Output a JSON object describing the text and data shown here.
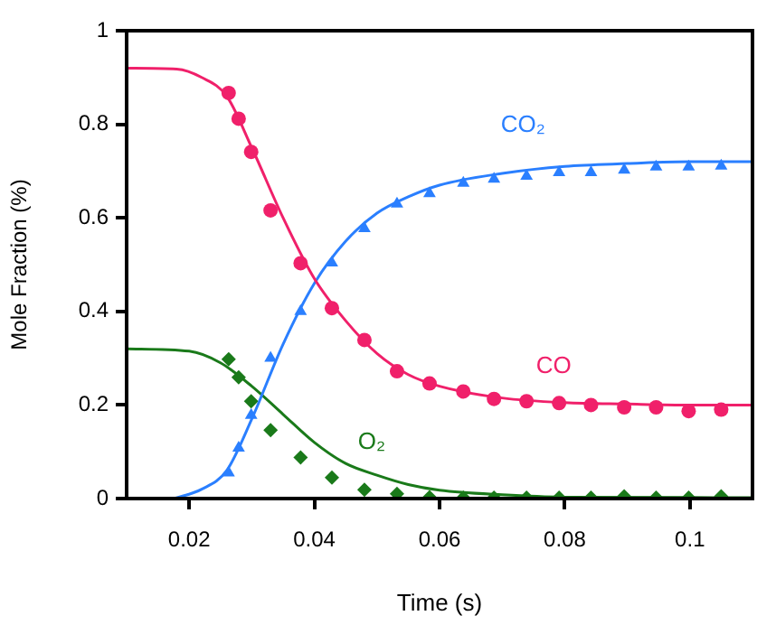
{
  "chart_data": {
    "type": "scatter",
    "xlabel": "Time (s)",
    "ylabel": "Mole Fraction (%)",
    "xlim": [
      0.01,
      0.11
    ],
    "xticks": [
      0.02,
      0.04,
      0.06,
      0.08,
      0.1
    ],
    "ylim": [
      0,
      1
    ],
    "yticks": [
      0,
      0.2,
      0.4,
      0.6,
      0.8,
      1
    ],
    "grid": false,
    "legend": false,
    "series": [
      {
        "name": "CO",
        "color": "#f0206a",
        "marker": "circle",
        "x": [
          0.0263,
          0.0279,
          0.0299,
          0.033,
          0.0378,
          0.0428,
          0.048,
          0.0532,
          0.0584,
          0.0638,
          0.0687,
          0.0739,
          0.0791,
          0.0842,
          0.0895,
          0.0946,
          0.0998,
          0.105
        ],
        "values": [
          0.867,
          0.812,
          0.741,
          0.616,
          0.503,
          0.407,
          0.339,
          0.272,
          0.246,
          0.229,
          0.213,
          0.208,
          0.204,
          0.2,
          0.195,
          0.195,
          0.187,
          0.19
        ]
      },
      {
        "type": "line",
        "color": "#f0206a",
        "marker": "none",
        "x": [
          0.01,
          0.018,
          0.022,
          0.026,
          0.03,
          0.035,
          0.04,
          0.045,
          0.05,
          0.055,
          0.06,
          0.07,
          0.08,
          0.09,
          0.1,
          0.11
        ],
        "values": [
          0.92,
          0.918,
          0.9,
          0.86,
          0.75,
          0.6,
          0.47,
          0.38,
          0.31,
          0.265,
          0.24,
          0.215,
          0.205,
          0.202,
          0.2,
          0.2
        ]
      },
      {
        "name": "CO₂",
        "color": "#2a7fff",
        "marker": "triangle",
        "x": [
          0.0263,
          0.0279,
          0.0299,
          0.033,
          0.0378,
          0.0428,
          0.048,
          0.0532,
          0.0584,
          0.0638,
          0.0687,
          0.0739,
          0.0791,
          0.0842,
          0.0895,
          0.0946,
          0.0998,
          0.105
        ],
        "values": [
          0.055,
          0.108,
          0.178,
          0.3,
          0.4,
          0.504,
          0.577,
          0.63,
          0.652,
          0.674,
          0.683,
          0.689,
          0.697,
          0.697,
          0.702,
          0.709,
          0.709,
          0.711
        ]
      },
      {
        "type": "line",
        "color": "#2a7fff",
        "marker": "none",
        "x": [
          0.0176,
          0.022,
          0.026,
          0.03,
          0.035,
          0.04,
          0.045,
          0.05,
          0.055,
          0.06,
          0.07,
          0.08,
          0.09,
          0.1,
          0.11
        ],
        "values": [
          0,
          0.02,
          0.06,
          0.17,
          0.33,
          0.46,
          0.55,
          0.61,
          0.645,
          0.67,
          0.695,
          0.71,
          0.716,
          0.72,
          0.72
        ]
      },
      {
        "name": "O₂",
        "color": "#1a7a1a",
        "marker": "diamond",
        "x": [
          0.0263,
          0.0279,
          0.0299,
          0.033,
          0.0378,
          0.0428,
          0.048,
          0.0532,
          0.0584,
          0.0638,
          0.0687,
          0.0739,
          0.0791,
          0.0842,
          0.0895,
          0.0946,
          0.0998,
          0.105
        ],
        "values": [
          0.298,
          0.259,
          0.208,
          0.146,
          0.088,
          0.045,
          0.019,
          0.01,
          0.003,
          0.002,
          0.002,
          0.002,
          0.002,
          0.002,
          0.005,
          0.002,
          0.002,
          0.005
        ]
      },
      {
        "type": "line",
        "color": "#1a7a1a",
        "marker": "none",
        "x": [
          0.01,
          0.02,
          0.025,
          0.03,
          0.035,
          0.04,
          0.045,
          0.05,
          0.055,
          0.06,
          0.07,
          0.08,
          0.11
        ],
        "values": [
          0.32,
          0.315,
          0.29,
          0.24,
          0.18,
          0.12,
          0.075,
          0.05,
          0.03,
          0.018,
          0.008,
          0.003,
          0.002
        ]
      }
    ]
  }
}
